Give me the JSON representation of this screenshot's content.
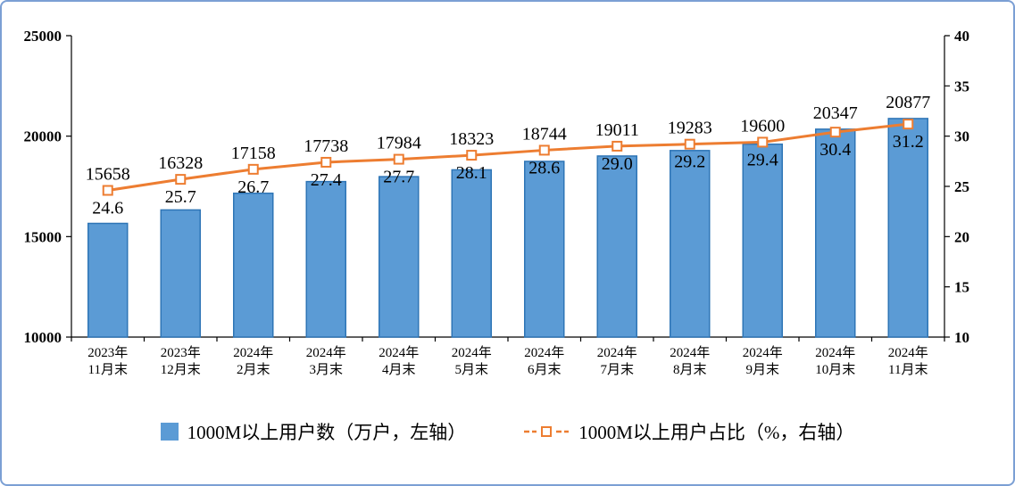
{
  "frame": {
    "border_color": "#7B9FD4"
  },
  "chart_data": {
    "type": "bar",
    "subtype": "bar+line combo, dual axis",
    "categories": [
      [
        "2023年",
        "11月末"
      ],
      [
        "2023年",
        "12月末"
      ],
      [
        "2024年",
        "2月末"
      ],
      [
        "2024年",
        "3月末"
      ],
      [
        "2024年",
        "4月末"
      ],
      [
        "2024年",
        "5月末"
      ],
      [
        "2024年",
        "6月末"
      ],
      [
        "2024年",
        "7月末"
      ],
      [
        "2024年",
        "8月末"
      ],
      [
        "2024年",
        "9月末"
      ],
      [
        "2024年",
        "10月末"
      ],
      [
        "2024年",
        "11月末"
      ]
    ],
    "bar_series": {
      "name": "1000M以上用户数（万户，左轴）",
      "values": [
        15658,
        16328,
        17158,
        17738,
        17984,
        18323,
        18744,
        19011,
        19283,
        19600,
        20347,
        20877
      ],
      "color": "#5B9BD5",
      "border_color": "#2E75B6",
      "axis": "left"
    },
    "line_series": {
      "name": "1000M以上用户占比（%，右轴）",
      "values": [
        24.6,
        25.7,
        26.7,
        27.4,
        27.7,
        28.1,
        28.6,
        29.0,
        29.2,
        29.4,
        30.4,
        31.2
      ],
      "color": "#ED7D31",
      "marker": "hollow-square",
      "axis": "right"
    },
    "left_axis": {
      "min": 10000,
      "max": 25000,
      "ticks": [
        10000,
        15000,
        20000,
        25000
      ]
    },
    "right_axis": {
      "min": 10,
      "max": 40,
      "ticks": [
        10,
        15,
        20,
        25,
        30,
        35,
        40
      ]
    },
    "grid": false,
    "legend_position": "bottom",
    "title": ""
  }
}
